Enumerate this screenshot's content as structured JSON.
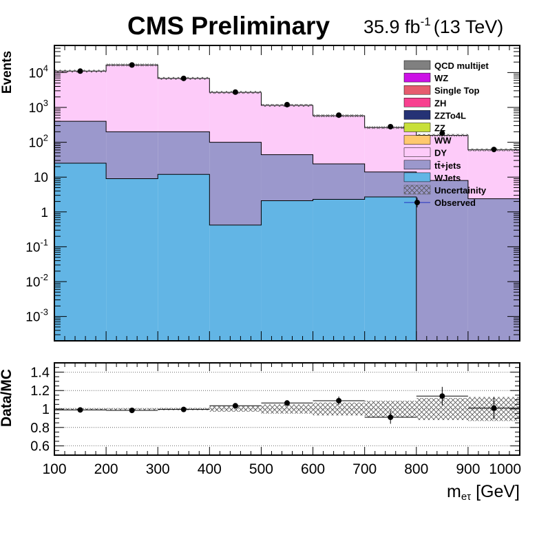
{
  "header": {
    "title": "CMS Preliminary",
    "lumi_value": "35.9 fb",
    "lumi_exp": "-1",
    "lumi_energy": "(13 TeV)"
  },
  "chart_data": {
    "type": "bar",
    "stacked": true,
    "log_y": true,
    "x_bins": [
      100,
      200,
      300,
      400,
      500,
      600,
      700,
      800,
      900,
      1000
    ],
    "xlim": [
      100,
      1000
    ],
    "ylim": [
      0.0002,
      60000
    ],
    "ylabel": "Events",
    "xlabel_main": "m",
    "xlabel_sub": "eτ",
    "xlabel_unit": " [GeV]",
    "x_ticks": [
      "100",
      "200",
      "300",
      "400",
      "500",
      "600",
      "700",
      "800",
      "900",
      "1000"
    ],
    "y_ticks": [
      {
        "value": 0.001,
        "base": "10",
        "exp": "-3"
      },
      {
        "value": 0.01,
        "base": "10",
        "exp": "-2"
      },
      {
        "value": 0.1,
        "base": "10",
        "exp": "-1"
      },
      {
        "value": 1,
        "base": "1",
        "exp": ""
      },
      {
        "value": 10,
        "base": "10",
        "exp": ""
      },
      {
        "value": 100,
        "base": "10",
        "exp": "2"
      },
      {
        "value": 1000,
        "base": "10",
        "exp": "3"
      },
      {
        "value": 10000,
        "base": "10",
        "exp": "4"
      }
    ],
    "stack": [
      {
        "name": "WJets",
        "color": "#62b5e5",
        "values": [
          25,
          9,
          12,
          0.42,
          2.1,
          2.3,
          2.7,
          0,
          0
        ]
      },
      {
        "name": "tt̄+jets",
        "color": "#9b98cc",
        "values": [
          375,
          191,
          188,
          99.58,
          41.9,
          21.7,
          11.3,
          8,
          2.4
        ]
      },
      {
        "name": "DY",
        "color": "#fdcbf9",
        "values": [
          10600,
          16300,
          6600,
          2600,
          1100,
          550,
          250,
          150,
          58
        ]
      },
      {
        "name": "WW",
        "color": "#ffc86e",
        "values": [
          0,
          0,
          0,
          0,
          0,
          0,
          0,
          0,
          0
        ]
      },
      {
        "name": "ZZ",
        "color": "#c8e03a",
        "values": [
          0,
          0,
          0,
          0,
          0,
          0,
          0,
          0,
          0
        ]
      },
      {
        "name": "ZZTo4L",
        "color": "#253275",
        "values": [
          0,
          0,
          0,
          0,
          0,
          0,
          0,
          0,
          0
        ]
      },
      {
        "name": "ZH",
        "color": "#f8408f",
        "values": [
          0,
          0,
          0,
          0,
          0,
          0,
          0,
          0,
          0
        ]
      },
      {
        "name": "Single Top",
        "color": "#e65c6e",
        "values": [
          0,
          0,
          0,
          0,
          0,
          0,
          0,
          0,
          0
        ]
      },
      {
        "name": "WZ",
        "color": "#cc10e6",
        "values": [
          0,
          0,
          0,
          0,
          0,
          0,
          0,
          0,
          0
        ]
      },
      {
        "name": "QCD multijet",
        "color": "#808080",
        "values": [
          0,
          0,
          0,
          0,
          0,
          0,
          0,
          0,
          0
        ]
      }
    ],
    "observed": {
      "name": "Observed",
      "x": [
        150,
        250,
        350,
        450,
        550,
        650,
        750,
        850,
        950
      ],
      "values": [
        11000,
        16500,
        6800,
        2750,
        1200,
        600,
        280,
        180,
        62
      ]
    },
    "uncertainty": {
      "name": "Uncertainity"
    },
    "legend_order": [
      "QCD multijet",
      "WZ",
      "Single Top",
      "ZH",
      "ZZTo4L",
      "ZZ",
      "WW",
      "DY",
      "tt̄+jets",
      "WJets",
      "Uncertainity",
      "Observed"
    ],
    "legend_position": "top-right",
    "ratio": {
      "ylabel": "Data/MC",
      "ylim": [
        0.5,
        1.5
      ],
      "y_ticks": [
        "0.6",
        "0.8",
        "1",
        "1.2",
        "1.4"
      ],
      "grid": true,
      "values": [
        0.99,
        0.985,
        0.995,
        1.035,
        1.065,
        1.09,
        0.91,
        1.14,
        1.01
      ],
      "errors": [
        0.01,
        0.01,
        0.012,
        0.02,
        0.03,
        0.045,
        0.07,
        0.1,
        0.12
      ],
      "band": [
        0.01,
        0.01,
        0.012,
        0.03,
        0.05,
        0.07,
        0.09,
        0.12,
        0.13
      ]
    }
  }
}
